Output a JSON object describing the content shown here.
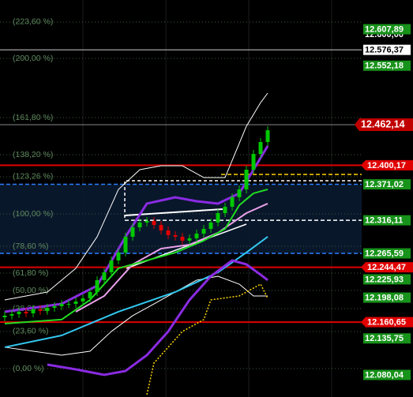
{
  "chart_data": {
    "type": "candlestick",
    "ylim": [
      12046.3,
      12652.5
    ],
    "candles": {
      "open": [
        12168,
        12170.5,
        12172.9,
        12176.5,
        12174.1,
        12180.1,
        12177.7,
        12182.5,
        12184.9,
        12188.5,
        12188.5,
        12192.1,
        12197,
        12206.6,
        12224.7,
        12236.7,
        12254.8,
        12266.9,
        12291,
        12305.4,
        12312.7,
        12315.1,
        12309,
        12300.6,
        12293.4,
        12291,
        12285,
        12288.6,
        12295.8,
        12303,
        12312.7,
        12327.1,
        12336.8,
        12351.3,
        12363.3,
        12393.4,
        12417.5,
        12435.6
      ],
      "high": [
        12176.5,
        12178.9,
        12182.5,
        12182.5,
        12186.1,
        12186.1,
        12188.5,
        12190.9,
        12194.5,
        12194.5,
        12198.1,
        12203,
        12212.6,
        12230.7,
        12242.7,
        12260.8,
        12272.9,
        12297,
        12311.4,
        12318.7,
        12321.1,
        12321.1,
        12315,
        12306.6,
        12299.4,
        12297,
        12294.6,
        12301.8,
        12309,
        12318.7,
        12333.1,
        12342.8,
        12357.3,
        12369.3,
        12399.4,
        12423.5,
        12441.6,
        12459.7
      ],
      "low": [
        12162,
        12164.5,
        12166.9,
        12168.1,
        12168.1,
        12171.7,
        12171.7,
        12176.5,
        12178.9,
        12182.5,
        12182.5,
        12186.1,
        12191,
        12200.6,
        12218.7,
        12230.7,
        12248.8,
        12260.9,
        12285,
        12299.4,
        12306.7,
        12303,
        12294.6,
        12287.4,
        12285,
        12279,
        12279,
        12282.6,
        12289.8,
        12297,
        12306.7,
        12321.1,
        12330.8,
        12345.3,
        12357.3,
        12387.4,
        12411.5,
        12429.6
      ],
      "close": [
        12170.5,
        12172.9,
        12176.5,
        12174.1,
        12180.1,
        12177.7,
        12182.5,
        12184.9,
        12188.5,
        12188.5,
        12192.1,
        12197,
        12206.6,
        12224.7,
        12236.7,
        12254.8,
        12266.9,
        12291,
        12305.4,
        12312.7,
        12315.1,
        12309,
        12300.6,
        12293.4,
        12291,
        12285,
        12288.6,
        12295.8,
        12303,
        12312.7,
        12327.1,
        12336.8,
        12351.3,
        12363.3,
        12393.4,
        12417.5,
        12435.6,
        12453.7
      ],
      "up_color": "#00c800",
      "down_color": "#e00000"
    },
    "series": [
      {
        "color": "#ffffff",
        "width": 1,
        "x": [
          0,
          6,
          10,
          13,
          16,
          19,
          22,
          25,
          28,
          31,
          34,
          36,
          37
        ],
        "values": [
          12194.6,
          12206.6,
          12242.8,
          12291.0,
          12363.3,
          12393.4,
          12399.4,
          12399.4,
          12381.4,
          12381.4,
          12459.7,
          12495.8,
          12510.3
        ]
      },
      {
        "color": "#ffffff",
        "width": 1,
        "x": [
          0,
          8,
          12,
          15,
          18,
          21,
          24,
          27,
          30,
          33,
          35,
          37
        ],
        "values": [
          12122.3,
          12110.2,
          12116.2,
          12146.4,
          12170.5,
          12188.5,
          12206.6,
          12224.7,
          12230.7,
          12218.6,
          12200.6,
          12200.6
        ]
      },
      {
        "color": "#e8a0e8",
        "width": 2,
        "x": [
          10,
          14,
          18,
          22,
          26,
          30,
          34,
          37
        ],
        "values": [
          12176.5,
          12200.6,
          12248.8,
          12272.9,
          12278.9,
          12297.0,
          12327.1,
          12341.6
        ]
      },
      {
        "color": "#33c8f0",
        "width": 2,
        "x": [
          0,
          8,
          16,
          24,
          30,
          34,
          37
        ],
        "values": [
          12122.3,
          12140.3,
          12176.5,
          12206.6,
          12236.7,
          12266.9,
          12291.0
        ]
      },
      {
        "color": "#22dd22",
        "width": 2,
        "x": [
          0,
          8,
          12,
          16,
          20,
          24,
          28,
          31,
          33,
          35,
          37
        ],
        "values": [
          12158.4,
          12164.5,
          12194.6,
          12242.8,
          12254.8,
          12266.9,
          12285.0,
          12303.0,
          12339.2,
          12357.3,
          12363.3
        ]
      },
      {
        "color": "#ffd700",
        "width": 1.5,
        "style": "dotted",
        "x": [
          20,
          21,
          25,
          28,
          29,
          33,
          36,
          37
        ],
        "values": [
          12050,
          12098.2,
          12146.4,
          12164.5,
          12194.6,
          12200.6,
          12218.6,
          12197.0
        ]
      },
      {
        "color": "#8a2be2",
        "width": 3,
        "x": [
          6,
          10,
          14,
          17,
          20,
          23,
          26,
          29,
          32,
          34,
          36,
          37
        ],
        "values": [
          12095.7,
          12088.5,
          12080.1,
          12086.1,
          12110.2,
          12146.4,
          12194.6,
          12230.7,
          12254.8,
          12248.8,
          12233.1,
          12224.7
        ]
      },
      {
        "color": "#8a2be2",
        "width": 3,
        "x": [
          0,
          4,
          8,
          13,
          17,
          20,
          24,
          27,
          30,
          33,
          35,
          37
        ],
        "values": [
          12176.5,
          12182.5,
          12188.5,
          12216.3,
          12291.0,
          12341.6,
          12351.2,
          12345.2,
          12341.6,
          12357.3,
          12393.4,
          12429.6
        ]
      }
    ],
    "fib_levels": [
      {
        "label": "(223,60 %)",
        "value": 12618.8
      },
      {
        "label": "(200,00 %)",
        "value": 12563.3
      },
      {
        "label": "(161,80 %)",
        "value": 12472.9
      },
      {
        "label": "(138,20 %)",
        "value": 12416.3
      },
      {
        "label": "(123,26 %)",
        "value": 12382.6
      },
      {
        "label": "(100,00 %)",
        "value": 12325.9
      },
      {
        "label": "(78,60 %)",
        "value": 12276.5
      },
      {
        "label": "(61,80 %)",
        "value": 12235.5
      },
      {
        "label": "(50,00 %)",
        "value": 12209.0
      },
      {
        "label": "(38,20 %)",
        "value": 12181.3
      },
      {
        "label": "(23,60 %)",
        "value": 12146.4
      },
      {
        "label": "(0,00 %)",
        "value": 12089.7
      }
    ],
    "price_labels": [
      {
        "value": 12600.0,
        "label": "12.600,00",
        "style": "plain"
      },
      {
        "value": 12607.89,
        "label": "12.607,89",
        "style": "green"
      },
      {
        "value": 12576.37,
        "label": "12.576,37",
        "style": "white",
        "line": "white"
      },
      {
        "value": 12552.18,
        "label": "12.552,18",
        "style": "green"
      },
      {
        "value": 12462.14,
        "label": "12.462,14",
        "style": "red-big",
        "line": "gray"
      },
      {
        "value": 12400.17,
        "label": "12.400,17",
        "style": "red",
        "line": "red"
      },
      {
        "value": 12371.02,
        "label": "12.371,02",
        "style": "green",
        "line": "blue-dashed"
      },
      {
        "value": 12316.11,
        "label": "12.316,11",
        "style": "green",
        "line": "white-dashed"
      },
      {
        "value": 12265.59,
        "label": "12.265,59",
        "style": "green",
        "line": "blue-dashed"
      },
      {
        "value": 12244.47,
        "label": "12.244,47",
        "style": "red",
        "line": "red"
      },
      {
        "value": 12225.93,
        "label": "12.225,93",
        "style": "green"
      },
      {
        "value": 12198.08,
        "label": "12.198,08",
        "style": "green"
      },
      {
        "value": 12160.65,
        "label": "12.160,65",
        "style": "red",
        "line": "red"
      },
      {
        "value": 12135.75,
        "label": "12.135,75",
        "style": "green"
      },
      {
        "value": 12080.04,
        "label": "12.080,04",
        "style": "green"
      }
    ]
  }
}
